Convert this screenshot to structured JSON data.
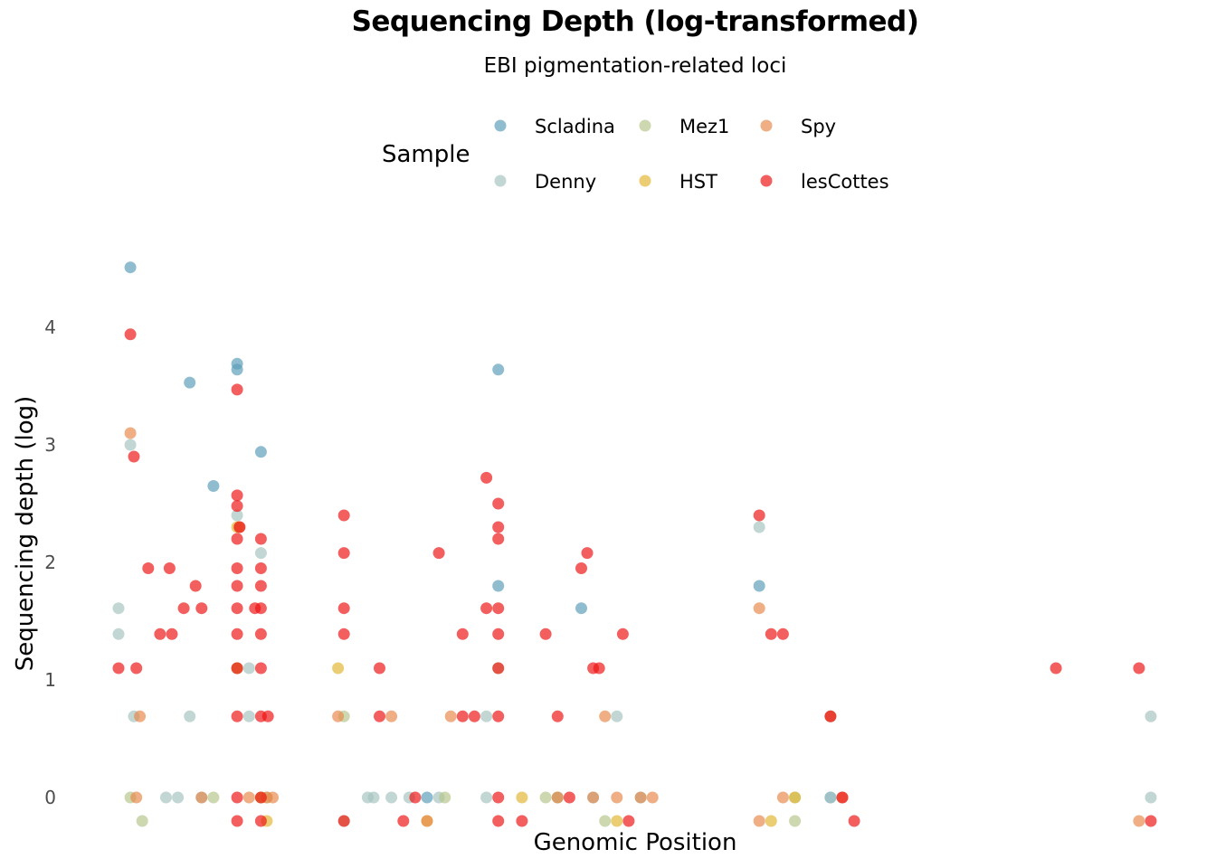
{
  "chart_data": {
    "type": "scatter",
    "title": "Sequencing Depth (log-transformed)",
    "subtitle": "EBI pigmentation-related loci",
    "xlabel": "Genomic Position",
    "ylabel": "Sequencing depth (log)",
    "ylim": [
      -0.2,
      4.6
    ],
    "yticks": [
      0,
      1,
      2,
      3,
      4
    ],
    "xlim": [
      0,
      88
    ],
    "x_ticks_shown": false,
    "grid": false,
    "legend": {
      "title": "Sample",
      "position": "top"
    },
    "series": [
      {
        "name": "Scladina",
        "color": "#5A9EB8",
        "points": [
          [
            2,
            4.51
          ],
          [
            7,
            3.53
          ],
          [
            9,
            2.65
          ],
          [
            11,
            3.69
          ],
          [
            11,
            3.64
          ],
          [
            13,
            2.94
          ],
          [
            27,
            0
          ],
          [
            33,
            3.64
          ],
          [
            33,
            1.8
          ],
          [
            40,
            1.61
          ],
          [
            55,
            1.8
          ],
          [
            61,
            0
          ]
        ]
      },
      {
        "name": "Denny",
        "color": "#A5C4C0",
        "points": [
          [
            1,
            1.61
          ],
          [
            1,
            1.39
          ],
          [
            2,
            3.0
          ],
          [
            2.3,
            0.69
          ],
          [
            7,
            0.69
          ],
          [
            11,
            2.4
          ],
          [
            11,
            1.1
          ],
          [
            13,
            2.08
          ],
          [
            12,
            1.1
          ],
          [
            12,
            0.69
          ],
          [
            5,
            0
          ],
          [
            6,
            0
          ],
          [
            8,
            0
          ],
          [
            13,
            0
          ],
          [
            22,
            0
          ],
          [
            22.5,
            0
          ],
          [
            24,
            0
          ],
          [
            25.5,
            0
          ],
          [
            28,
            0
          ],
          [
            32,
            0.69
          ],
          [
            32,
            0
          ],
          [
            38,
            0
          ],
          [
            41,
            0
          ],
          [
            43,
            0.69
          ],
          [
            45,
            0
          ],
          [
            55,
            2.3
          ],
          [
            61,
            0.69
          ],
          [
            61,
            0
          ],
          [
            88,
            0
          ],
          [
            88,
            0.69
          ]
        ]
      },
      {
        "name": "Mez1",
        "color": "#B5C58A",
        "points": [
          [
            2,
            0
          ],
          [
            3,
            -0.2
          ],
          [
            9,
            0
          ],
          [
            13.5,
            0
          ],
          [
            20,
            0.69
          ],
          [
            20,
            -0.2
          ],
          [
            28.5,
            0
          ],
          [
            33,
            1.1
          ],
          [
            37,
            0
          ],
          [
            38,
            0
          ],
          [
            42,
            -0.2
          ],
          [
            58,
            0
          ],
          [
            58,
            -0.2
          ]
        ]
      },
      {
        "name": "HST",
        "color": "#E1B530",
        "points": [
          [
            11,
            2.3
          ],
          [
            11,
            1.1
          ],
          [
            13,
            0
          ],
          [
            13.5,
            -0.2
          ],
          [
            19.5,
            1.1
          ],
          [
            27,
            -0.2
          ],
          [
            35,
            0
          ],
          [
            43,
            -0.2
          ],
          [
            56,
            -0.2
          ],
          [
            58,
            0
          ]
        ]
      },
      {
        "name": "Spy",
        "color": "#E8874A",
        "points": [
          [
            2,
            3.1
          ],
          [
            2.5,
            0
          ],
          [
            2.8,
            0.69
          ],
          [
            8,
            0
          ],
          [
            11.2,
            2.3
          ],
          [
            12,
            0
          ],
          [
            13.5,
            0
          ],
          [
            14,
            0
          ],
          [
            19.5,
            0.69
          ],
          [
            24,
            0.69
          ],
          [
            27,
            -0.2
          ],
          [
            29,
            0.69
          ],
          [
            38,
            0
          ],
          [
            41,
            0
          ],
          [
            42,
            0.69
          ],
          [
            43,
            0
          ],
          [
            45,
            0
          ],
          [
            46,
            0
          ],
          [
            55,
            1.61
          ],
          [
            55,
            -0.2
          ],
          [
            57,
            0
          ],
          [
            61,
            0.69
          ],
          [
            62,
            0
          ],
          [
            87,
            -0.2
          ]
        ]
      },
      {
        "name": "lesCottes",
        "color": "#EE1111",
        "points": [
          [
            1,
            1.1
          ],
          [
            2,
            3.94
          ],
          [
            2.3,
            2.9
          ],
          [
            2.5,
            1.1
          ],
          [
            3.5,
            1.95
          ],
          [
            4.5,
            1.39
          ],
          [
            5.3,
            1.95
          ],
          [
            5.5,
            1.39
          ],
          [
            6.5,
            1.61
          ],
          [
            7.5,
            1.8
          ],
          [
            8,
            1.61
          ],
          [
            11,
            3.47
          ],
          [
            11,
            2.57
          ],
          [
            11,
            2.48
          ],
          [
            11.2,
            2.3
          ],
          [
            11,
            2.2
          ],
          [
            11,
            1.95
          ],
          [
            11,
            1.8
          ],
          [
            11,
            1.61
          ],
          [
            11,
            1.39
          ],
          [
            11,
            1.1
          ],
          [
            11,
            0.69
          ],
          [
            11,
            0
          ],
          [
            11,
            -0.2
          ],
          [
            13,
            2.2
          ],
          [
            13,
            1.95
          ],
          [
            13,
            1.8
          ],
          [
            13,
            1.61
          ],
          [
            13,
            1.39
          ],
          [
            13,
            1.1
          ],
          [
            13,
            0.69
          ],
          [
            13,
            0
          ],
          [
            13,
            -0.2
          ],
          [
            12.5,
            1.61
          ],
          [
            13.6,
            0.69
          ],
          [
            20,
            2.4
          ],
          [
            20,
            2.08
          ],
          [
            20,
            1.61
          ],
          [
            20,
            1.39
          ],
          [
            20,
            -0.2
          ],
          [
            23,
            1.1
          ],
          [
            23,
            0.69
          ],
          [
            25,
            -0.2
          ],
          [
            26,
            0
          ],
          [
            28,
            2.08
          ],
          [
            30,
            1.39
          ],
          [
            30,
            0.69
          ],
          [
            31,
            0.69
          ],
          [
            32,
            1.61
          ],
          [
            32,
            2.72
          ],
          [
            33,
            2.5
          ],
          [
            33,
            2.3
          ],
          [
            33,
            2.2
          ],
          [
            33,
            1.61
          ],
          [
            33,
            1.39
          ],
          [
            33,
            1.1
          ],
          [
            33,
            0.69
          ],
          [
            33,
            0
          ],
          [
            33,
            -0.2
          ],
          [
            35,
            -0.2
          ],
          [
            37,
            1.39
          ],
          [
            38,
            0.69
          ],
          [
            39,
            0
          ],
          [
            40,
            1.95
          ],
          [
            40.5,
            2.08
          ],
          [
            41,
            1.1
          ],
          [
            41.5,
            1.1
          ],
          [
            43.5,
            1.39
          ],
          [
            44,
            -0.2
          ],
          [
            55,
            2.4
          ],
          [
            56,
            1.39
          ],
          [
            57,
            1.39
          ],
          [
            61,
            0.69
          ],
          [
            62,
            0
          ],
          [
            63,
            -0.2
          ],
          [
            80,
            1.1
          ],
          [
            87,
            1.1
          ],
          [
            88,
            -0.2
          ]
        ]
      }
    ]
  }
}
